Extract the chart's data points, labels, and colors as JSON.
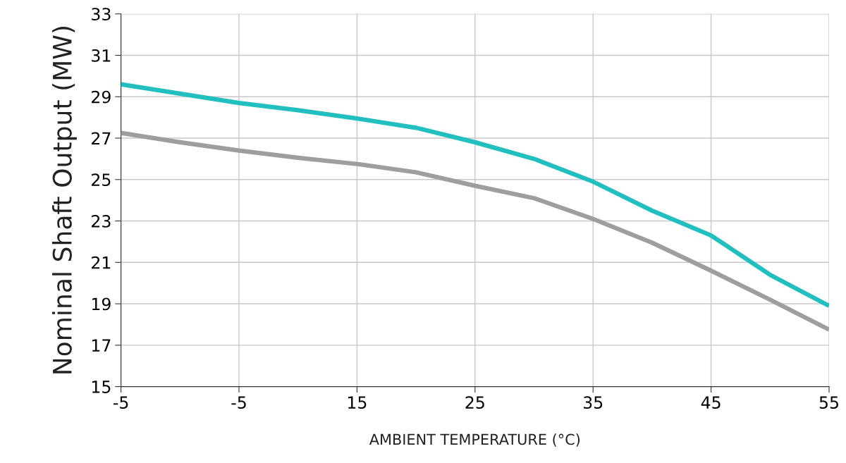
{
  "chart_data": {
    "type": "line",
    "xlabel": "AMBIENT TEMPERATURE (°C)",
    "ylabel": "Nominal Shaft Output (MW)",
    "categories": [
      "-5",
      null,
      "-5",
      null,
      "15",
      null,
      "25",
      null,
      "35",
      null,
      "45",
      null,
      "55"
    ],
    "series": [
      {
        "color": "#22bfc1",
        "values": [
          29.6,
          29.15,
          28.7,
          28.35,
          27.95,
          27.5,
          26.8,
          26.0,
          24.9,
          23.5,
          22.3,
          20.4,
          18.9
        ]
      },
      {
        "color": "#9e9e9e",
        "values": [
          27.25,
          26.8,
          26.4,
          26.05,
          25.75,
          25.35,
          24.7,
          24.1,
          23.1,
          21.95,
          20.6,
          19.2,
          17.75
        ]
      }
    ],
    "ylim": [
      15,
      33
    ],
    "yticks": [
      15,
      17,
      19,
      21,
      23,
      25,
      27,
      29,
      31,
      33
    ],
    "grid": true,
    "marker": "none",
    "line_style": "solid"
  }
}
